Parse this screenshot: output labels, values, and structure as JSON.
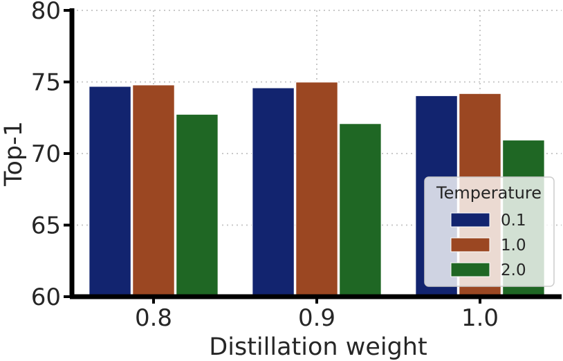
{
  "chart_data": {
    "type": "bar",
    "categories": [
      "0.8",
      "0.9",
      "1.0"
    ],
    "series": [
      {
        "name": "0.1",
        "values": [
          74.7,
          74.6,
          74.05
        ],
        "color": "#12246f"
      },
      {
        "name": "1.0",
        "values": [
          74.8,
          75.0,
          74.2
        ],
        "color": "#9b4722"
      },
      {
        "name": "2.0",
        "values": [
          72.75,
          72.1,
          70.95
        ],
        "color": "#1f6724"
      }
    ],
    "title": "",
    "xlabel": "Distillation weight",
    "ylabel": "Top-1",
    "ylim": [
      60,
      80
    ],
    "yticks": [
      "60",
      "65",
      "70",
      "75",
      "80"
    ],
    "grid": true,
    "legend": {
      "title": "Temperature",
      "position": "bottom-right"
    }
  }
}
